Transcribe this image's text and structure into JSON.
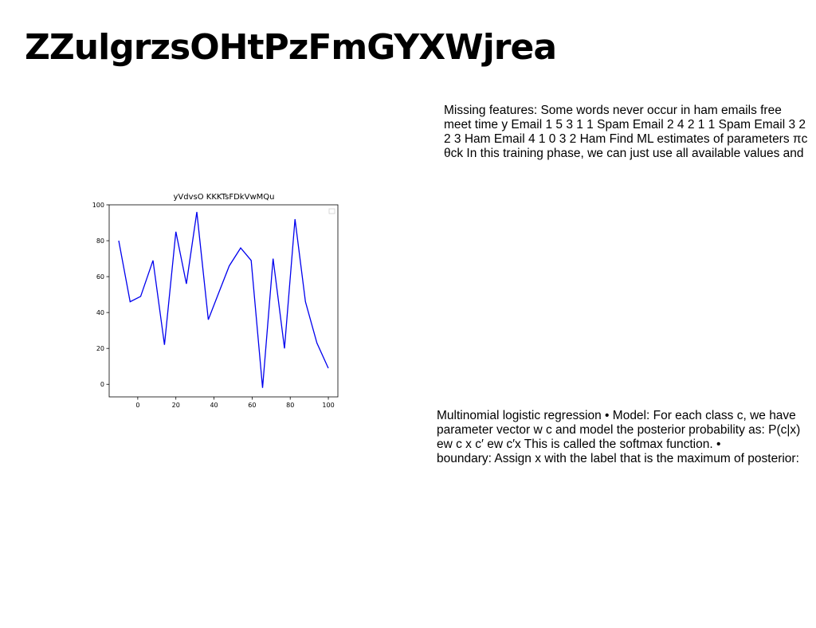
{
  "slide": {
    "title": "ZZulgrzsOHtPzFmGYXWjrea"
  },
  "text_block_1": {
    "lines": [
      "Missing features: Some words never occur in ham emails free",
      "meet time y Email 1 5 3 1 1 Spam Email 2 4 2 1 1 Spam Email 3 2",
      "2 3 Ham Email 4 1 0 3 2 Ham Find ML estimates of parameters πc",
      "θck In this training phase, we can just use all available values and"
    ]
  },
  "text_block_2": {
    "lines": [
      "Multinomial logistic regression • Model: For each class c, we have",
      "parameter vector w c and model the posterior probability as: P(c|x)",
      "ew  c x  c′ ew  c′x  This is called the softmax function. •",
      "boundary: Assign x with the label that is the maximum of posterior:"
    ]
  },
  "chart_data": {
    "type": "line",
    "title": "yVdvsO KKKTsFDkVwMQu",
    "xlabel": "",
    "ylabel": "",
    "xlim": [
      -15,
      105
    ],
    "ylim": [
      -7,
      100
    ],
    "x_ticks": [
      "0",
      "20",
      "40",
      "60",
      "80",
      "100"
    ],
    "y_ticks": [
      "0",
      "20",
      "40",
      "60",
      "80",
      "100"
    ],
    "grid": false,
    "legend": "top-right (empty)",
    "series": [
      {
        "color": "#0000ee",
        "x": [
          -10,
          -4,
          1.5,
          8,
          14,
          20,
          25.5,
          31,
          37,
          42.5,
          48,
          54,
          59.5,
          65.5,
          71,
          77,
          82.5,
          88,
          94,
          100
        ],
        "y": [
          80,
          46,
          49,
          69,
          22,
          85,
          56,
          96,
          36,
          51,
          66,
          76,
          69,
          -2,
          70,
          20,
          92,
          46,
          23,
          9
        ]
      }
    ]
  }
}
